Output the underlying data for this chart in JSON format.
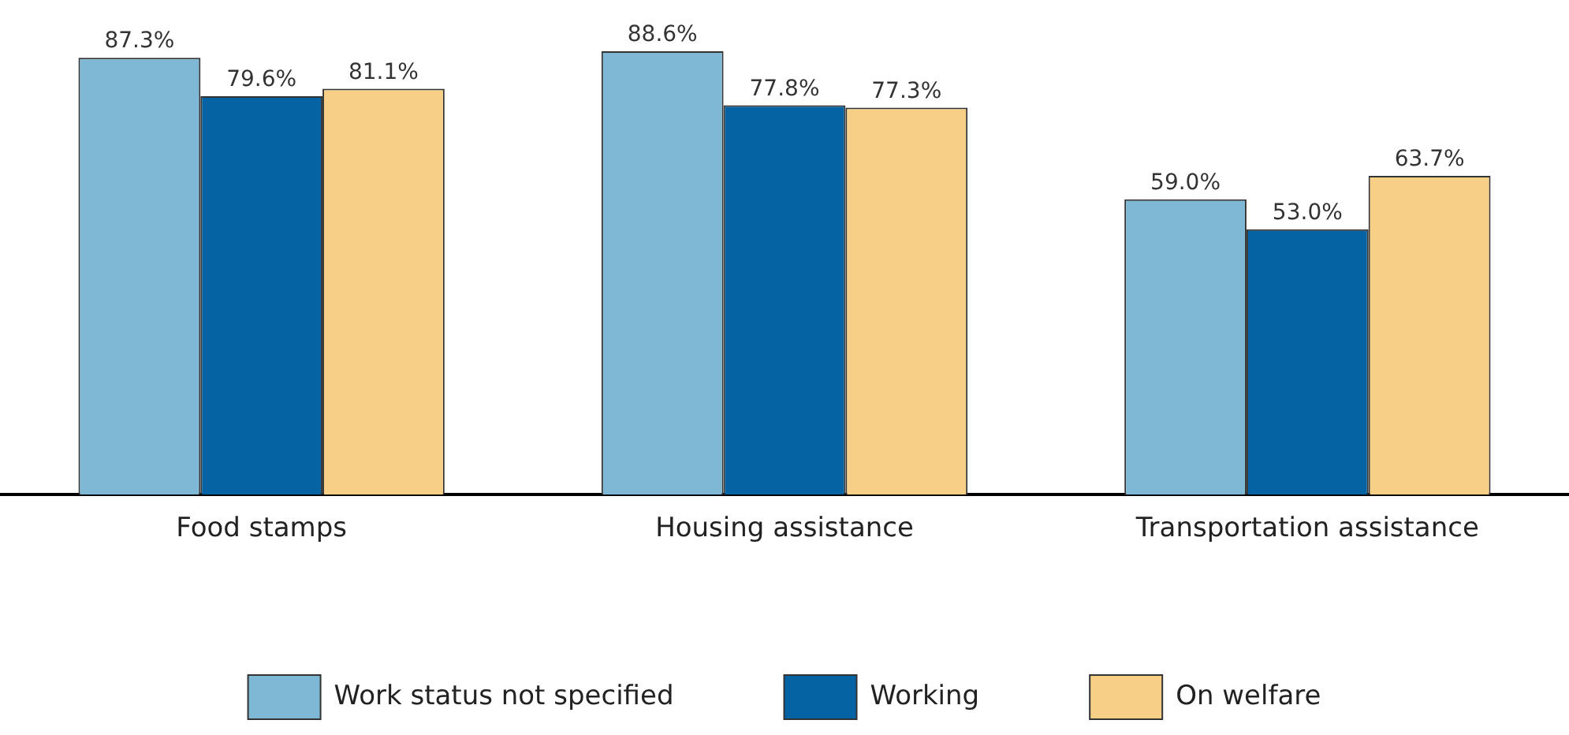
{
  "chart_data": {
    "type": "bar",
    "categories": [
      "Food stamps",
      "Housing assistance",
      "Transportation assistance"
    ],
    "series": [
      {
        "name": "Work status not specified",
        "color": "#7fb8d4",
        "values": [
          87.3,
          88.6,
          59.0
        ],
        "value_labels": [
          "87.3%",
          "88.6%",
          "59.0%"
        ]
      },
      {
        "name": "Working",
        "color": "#0563a4",
        "values": [
          79.6,
          77.8,
          53.0
        ],
        "value_labels": [
          "79.6%",
          "77.8%",
          "53.0%"
        ]
      },
      {
        "name": "On welfare",
        "color": "#f7cf86",
        "values": [
          81.1,
          77.3,
          63.7
        ],
        "value_labels": [
          "81.1%",
          "77.3%",
          "63.7%"
        ]
      }
    ],
    "grid": false,
    "legend": "bottom",
    "tick_labels": "x"
  }
}
